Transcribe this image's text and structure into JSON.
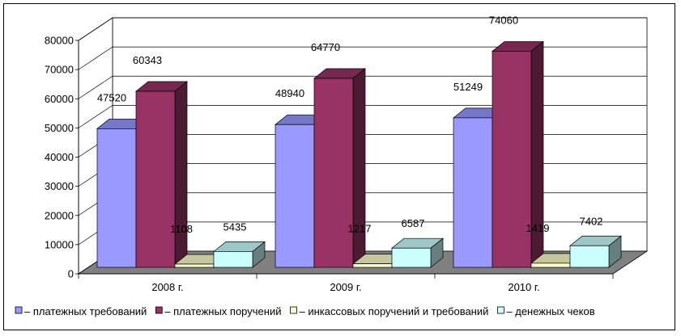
{
  "chart_data": {
    "type": "bar",
    "categories": [
      "2008 г.",
      "2009 г.",
      "2010 г."
    ],
    "series": [
      {
        "name": "– платежных требований",
        "values": [
          47520,
          48940,
          51249
        ],
        "color": "#9999ff"
      },
      {
        "name": "– платежных поручений",
        "values": [
          60343,
          64770,
          74060
        ],
        "color": "#993366"
      },
      {
        "name": "– инкассовых поручений и требований",
        "values": [
          1108,
          1217,
          1419
        ],
        "color": "#ffffcc"
      },
      {
        "name": "– денежных чеков",
        "values": [
          5435,
          6587,
          7402
        ],
        "color": "#ccffff"
      }
    ],
    "yticks": [
      0,
      10000,
      20000,
      30000,
      40000,
      50000,
      60000,
      70000,
      80000
    ],
    "ylim": [
      0,
      80000
    ],
    "grid": true,
    "legend_position": "bottom",
    "three_d": true
  }
}
